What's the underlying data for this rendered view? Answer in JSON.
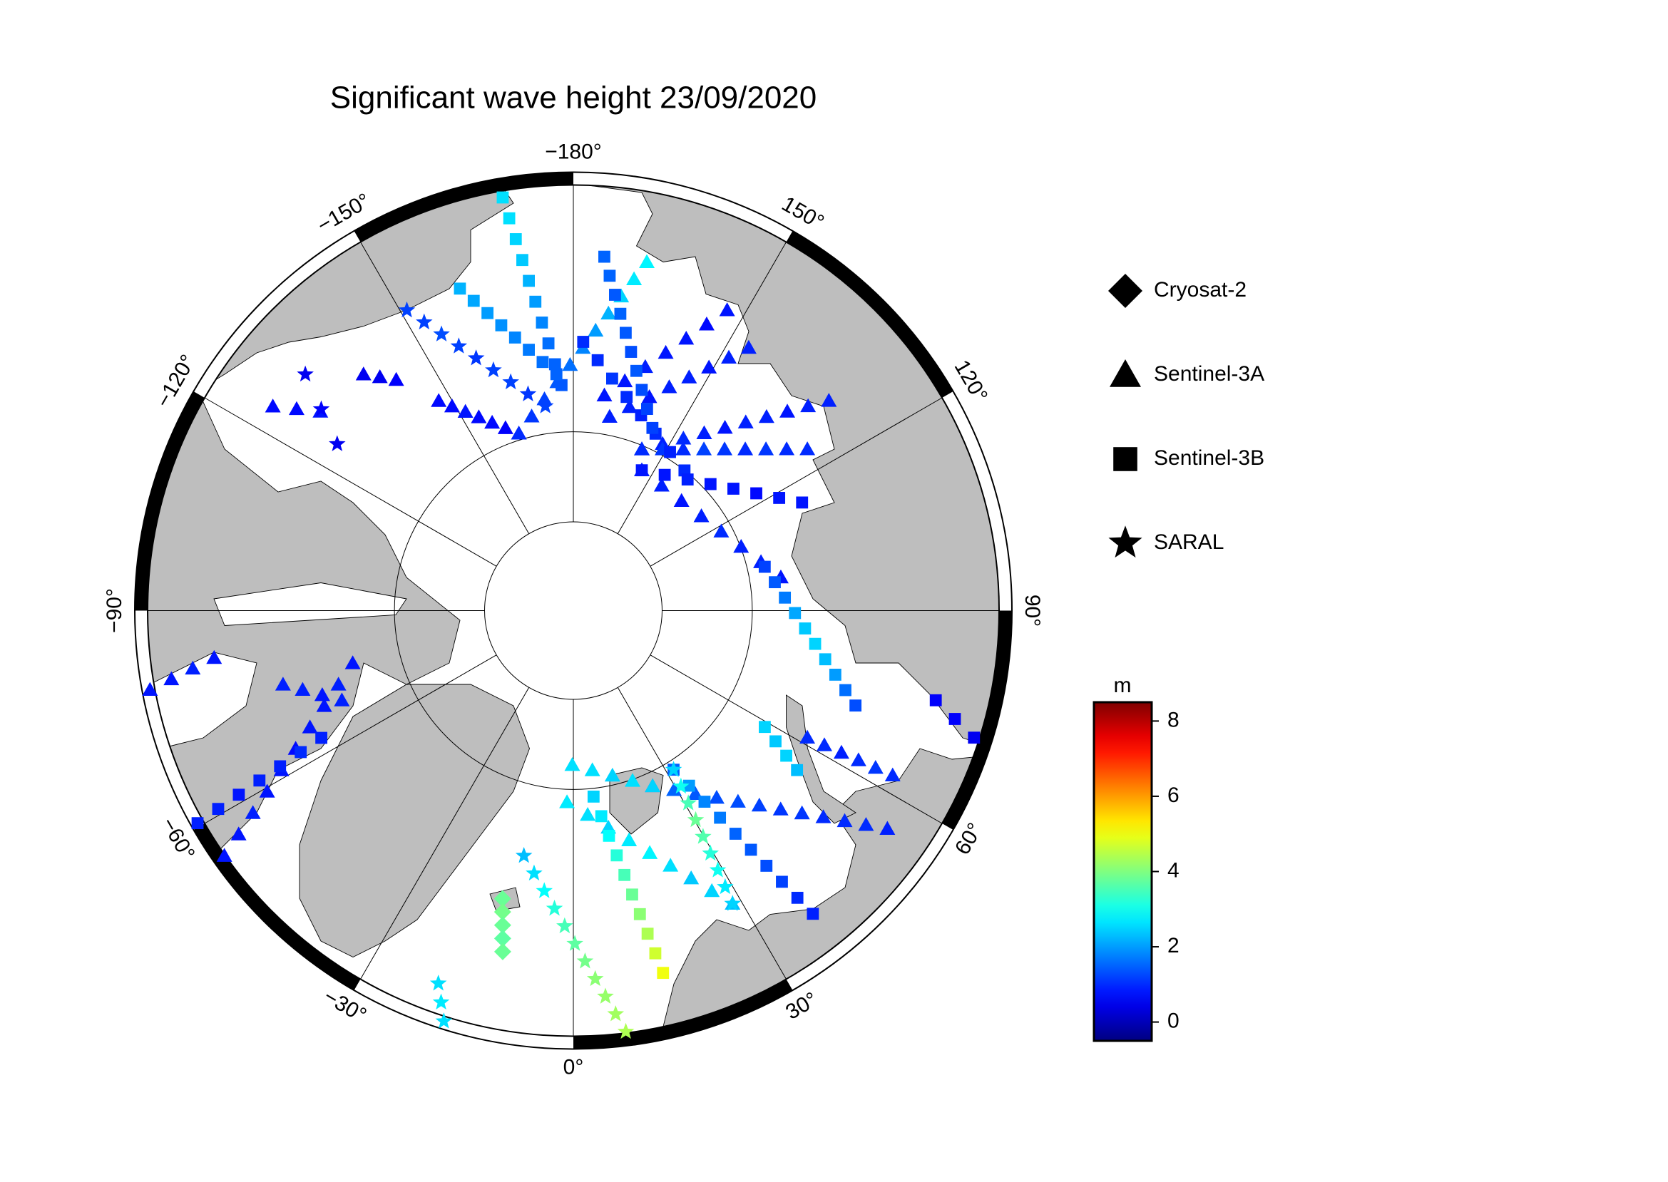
{
  "map": {
    "title": "Significant wave height 23/09/2020",
    "meridians": [
      {
        "value": -180,
        "label": "−180°"
      },
      {
        "value": -150,
        "label": "−150°"
      },
      {
        "value": -120,
        "label": "−120°"
      },
      {
        "value": -90,
        "label": "−90°"
      },
      {
        "value": -60,
        "label": "−60°"
      },
      {
        "value": -30,
        "label": "−30°"
      },
      {
        "value": 0,
        "label": "0°"
      },
      {
        "value": 30,
        "label": "30°"
      },
      {
        "value": 60,
        "label": "60°"
      },
      {
        "value": 90,
        "label": "90°"
      },
      {
        "value": 120,
        "label": "120°"
      },
      {
        "value": 150,
        "label": "150°"
      }
    ],
    "colorbar": {
      "label": "m",
      "colormap": "jet",
      "clim": [
        -0.5,
        8.5
      ],
      "ticks": [
        0,
        2,
        4,
        6,
        8
      ]
    },
    "sensors": [
      {
        "name": "Cryosat-2",
        "marker": "diamond",
        "tracks": [
          {
            "lon": [
              -13.8,
              -11.7
            ],
            "lat": [
              57.4,
              52.1
            ],
            "swh": [
              3.8,
              3.9,
              3.8,
              3.7,
              3.8
            ]
          }
        ]
      },
      {
        "name": "Sentinel-3A",
        "marker": "triangle",
        "tracks": [
          {
            "lon": [
              -147.3,
              -162.9
            ],
            "lat": [
              62.4,
              69.3
            ],
            "swh": [
              0.7,
              0.7,
              0.8,
              0.7,
              0.7,
              0.6,
              0.7
            ]
          },
          {
            "lon": [
              -162.9,
              168.1
            ],
            "lat": [
              69.3,
              51.3
            ],
            "swh": [
              1.0,
              1.1,
              1.2,
              1.4,
              1.6,
              1.8,
              2.0,
              2.2,
              2.5,
              2.7,
              2.8
            ]
          },
          {
            "lon": [
              171.8,
              152.9
            ],
            "lat": [
              65.8,
              53.2
            ],
            "swh": [
              0.8,
              0.8,
              0.9,
              0.8,
              0.8,
              0.7,
              0.8
            ]
          },
          {
            "lon": [
              169.4,
              146.3
            ],
            "lat": [
              68.0,
              55.4
            ],
            "swh": [
              0.9,
              0.9,
              0.8,
              0.9,
              0.9,
              0.8,
              0.9,
              0.9
            ]
          },
          {
            "lon": [
              157.0,
              129.4
            ],
            "lat": [
              70.4,
              53.9
            ],
            "swh": [
              0.9,
              0.9,
              1.0,
              0.9,
              0.8,
              0.9,
              0.9,
              0.8,
              0.9,
              0.9
            ]
          },
          {
            "lon": [
              157.0,
              124.6
            ],
            "lat": [
              70.4,
              58.7
            ],
            "swh": [
              1.0,
              1.1,
              1.0,
              1.2,
              1.1,
              1.0,
              1.1,
              1.0,
              1.0
            ]
          },
          {
            "lon": [
              154.0,
              99.1
            ],
            "lat": [
              72.5,
              66.6
            ],
            "swh": [
              0.9,
              0.9,
              0.8,
              0.9,
              1.0,
              0.9,
              0.9,
              0.8
            ]
          },
          {
            "lon": [
              61.5,
              62.7
            ],
            "lat": [
              60.6,
              51.0
            ],
            "swh": [
              1.0,
              1.0,
              0.9,
              1.0,
              1.1,
              1.0
            ]
          },
          {
            "lon": [
              24.3,
              55.2
            ],
            "lat": [
              68.5,
              48.7
            ],
            "swh": [
              1.6,
              1.5,
              1.4,
              1.3,
              1.3,
              1.2,
              1.1,
              1.1,
              1.0,
              1.0,
              1.0,
              0.9
            ]
          },
          {
            "lon": [
              -0.4,
              24.3
            ],
            "lat": [
              72.7,
              68.5
            ],
            "swh": [
              2.6,
              2.6,
              2.5,
              2.6,
              2.5
            ]
          },
          {
            "lon": [
              -1.9,
              28.5
            ],
            "lat": [
              68.6,
              53.6
            ],
            "swh": [
              2.7,
              2.6,
              2.5,
              2.7,
              2.8,
              2.6,
              2.4,
              2.5,
              2.3
            ]
          },
          {
            "lon": [
              -54.9,
              -76.6
            ],
            "lat": [
              44.4,
              64.8
            ],
            "swh": [
              0.8,
              0.8,
              0.9,
              0.8,
              0.8,
              0.7,
              0.8,
              0.8,
              0.9,
              0.8
            ]
          },
          {
            "lon": [
              -75.7,
              -68.8
            ],
            "lat": [
              57.1,
              62.5
            ],
            "swh": [
              0.9,
              0.9,
              0.8,
              0.9
            ]
          },
          {
            "lon": [
              -79.4,
              -82.5
            ],
            "lat": [
              44.0,
              50.7
            ],
            "swh": [
              0.8,
              0.8,
              0.9,
              0.8
            ]
          },
          {
            "lon": [
              -124.2,
              -128.2
            ],
            "lat": [
              50.6,
              54.8
            ],
            "swh": [
              0.7,
              0.7,
              0.8
            ]
          },
          {
            "lon": [
              -138.4,
              -142.5
            ],
            "lat": [
              55.4,
              58.0
            ],
            "swh": [
              0.5,
              0.5,
              0.6
            ]
          }
        ]
      },
      {
        "name": "Sentinel-3B",
        "marker": "square",
        "tracks": [
          {
            "lon": [
              -170.3,
              -177.0
            ],
            "lat": [
              45.1,
              64.9
            ],
            "swh": [
              2.6,
              2.6,
              2.5,
              2.4,
              2.2,
              2.0,
              1.8,
              1.6,
              1.5,
              1.4
            ]
          },
          {
            "lon": [
              -160.6,
              -175.9
            ],
            "lat": [
              52.8,
              63.7
            ],
            "swh": [
              2.2,
              2.1,
              2.0,
              1.9,
              1.8,
              1.7,
              1.6,
              1.5
            ]
          },
          {
            "lon": [
              177.9,
              141.6
            ],
            "lat": [
              60.3,
              70.0
            ],
            "swh": [
              1.0,
              1.0,
              1.1,
              1.0,
              0.9,
              1.0,
              0.9,
              1.0
            ]
          },
          {
            "lon": [
              175.0,
              156.6
            ],
            "lat": [
              51.4,
              67.8
            ],
            "swh": [
              1.5,
              1.5,
              1.4,
              1.5,
              1.4,
              1.3,
              1.4,
              1.3,
              1.2,
              1.2
            ]
          },
          {
            "lon": [
              154.0,
              115.3
            ],
            "lat": [
              72.5,
              62.0
            ],
            "swh": [
              0.8,
              0.8,
              0.9,
              0.8,
              0.8,
              0.7,
              0.8,
              0.8
            ]
          },
          {
            "lon": [
              102.9,
              71.4
            ],
            "lat": [
              68.1,
              57.3
            ],
            "swh": [
              1.2,
              1.4,
              1.7,
              2.1,
              2.4,
              2.5,
              2.3,
              2.0,
              1.6,
              1.3
            ]
          },
          {
            "lon": [
              58.7,
              54.5
            ],
            "lat": [
              65.1,
              59.7
            ],
            "swh": [
              2.5,
              2.4,
              2.5,
              2.3
            ]
          },
          {
            "lon": [
              32.2,
              38.3
            ],
            "lat": [
              69.0,
              48.3
            ],
            "swh": [
              1.5,
              2.0,
              1.8,
              1.7,
              1.5,
              1.4,
              1.3,
              1.2,
              1.0,
              0.9
            ]
          },
          {
            "lon": [
              6.2,
              13.9
            ],
            "lat": [
              69.1,
              49.6
            ],
            "swh": [
              2.5,
              2.7,
              2.9,
              3.2,
              3.5,
              3.8,
              4.1,
              4.4,
              4.7,
              5.0
            ]
          },
          {
            "lon": [
              -60.5,
              -63.2
            ],
            "lat": [
              43.9,
              58.9
            ],
            "swh": [
              0.9,
              0.9,
              0.8,
              0.9,
              0.9,
              1.0,
              0.9
            ]
          },
          {
            "lon": [
              76.1,
              72.4
            ],
            "lat": [
              49.6,
              45.0
            ],
            "swh": [
              0.6,
              0.6,
              0.5
            ]
          }
        ]
      },
      {
        "name": "SARAL",
        "marker": "star",
        "tracks": [
          {
            "lon": [
              -151.0,
              -172.2
            ],
            "lat": [
              52.6,
              67.0
            ],
            "swh": [
              1.2,
              1.2,
              1.3,
              1.2,
              1.1,
              1.2,
              1.2,
              1.1,
              1.2
            ]
          },
          {
            "lon": [
              32.2,
              28.5
            ],
            "lat": [
              69.0,
              53.6
            ],
            "swh": [
              2.5,
              3.0,
              3.5,
              3.8,
              3.6,
              3.2,
              3.0,
              2.7,
              2.5
            ]
          },
          {
            "lon": [
              -11.4,
              7.1
            ],
            "lat": [
              62.3,
              44.6
            ],
            "swh": [
              2.3,
              2.6,
              2.9,
              3.2,
              3.5,
              3.7,
              3.9,
              4.1,
              4.2,
              4.3,
              4.4
            ]
          },
          {
            "lon": [
              -19.9,
              -17.5
            ],
            "lat": [
              47.3,
              44.0
            ],
            "swh": [
              2.6,
              2.7,
              2.6
            ]
          },
          {
            "lon": [
              -131.4,
              -125.2
            ],
            "lat": [
              51.2,
              58.2
            ],
            "swh": [
              0.5,
              0.6,
              0.5
            ]
          }
        ]
      }
    ]
  }
}
